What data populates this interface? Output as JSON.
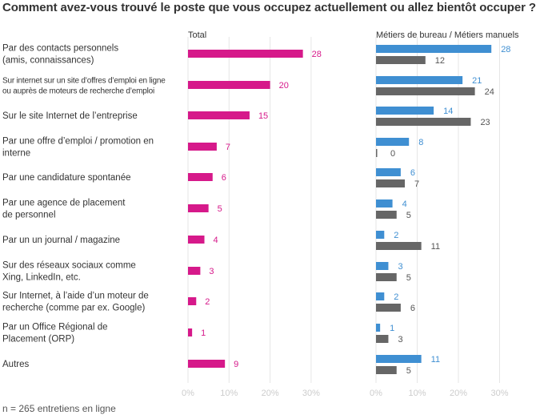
{
  "title": "Comment avez-vous trouvé le poste que vous occupez actuellement ou allez bientôt occuper ?",
  "footnote": "n = 265 entretiens en ligne",
  "colors": {
    "total": "#d6198a",
    "bureau": "#3f8fd2",
    "manuels": "#666666",
    "grid": "#e6e6e6"
  },
  "chart_data": [
    {
      "type": "bar",
      "orientation": "horizontal",
      "title": "Total",
      "categories": [
        [
          "Par des contacts personnels",
          "(amis, connaissances)"
        ],
        [
          "Sur internet sur un site d’offres d’emploi en ligne",
          "ou auprès de moteurs de recherche d’emploi"
        ],
        [
          "Sur le site Internet de l’entreprise"
        ],
        [
          "Par une offre d’emploi / promotion en",
          "interne"
        ],
        [
          "Par une candidature spontanée"
        ],
        [
          "Par une agence de placement",
          "de personnel"
        ],
        [
          "Par un un journal / magazine"
        ],
        [
          "Sur des réseaux sociaux comme",
          "Xing, LinkedIn, etc."
        ],
        [
          "Sur Internet, à l’aide d’un moteur de",
          "recherche (comme par ex. Google)"
        ],
        [
          "Par un Office Régional de",
          "Placement (ORP)"
        ],
        [
          "Autres"
        ]
      ],
      "series": [
        {
          "values": [
            28,
            20,
            15,
            7,
            6,
            5,
            4,
            3,
            2,
            1,
            9
          ]
        }
      ],
      "xlim": [
        0,
        30
      ],
      "xticks": [
        "0%",
        "10%",
        "20%",
        "30%"
      ],
      "grid": true
    },
    {
      "type": "bar",
      "orientation": "horizontal",
      "title": "Métiers de bureau / Métiers manuels",
      "series": [
        {
          "values": [
            28,
            21,
            14,
            8,
            6,
            4,
            2,
            3,
            2,
            1,
            11
          ]
        },
        {
          "values": [
            12,
            24,
            23,
            0,
            7,
            5,
            11,
            5,
            6,
            3,
            5
          ]
        }
      ],
      "xlim": [
        0,
        30
      ],
      "xticks": [
        "0%",
        "10%",
        "20%",
        "30%"
      ],
      "grid": true
    }
  ]
}
